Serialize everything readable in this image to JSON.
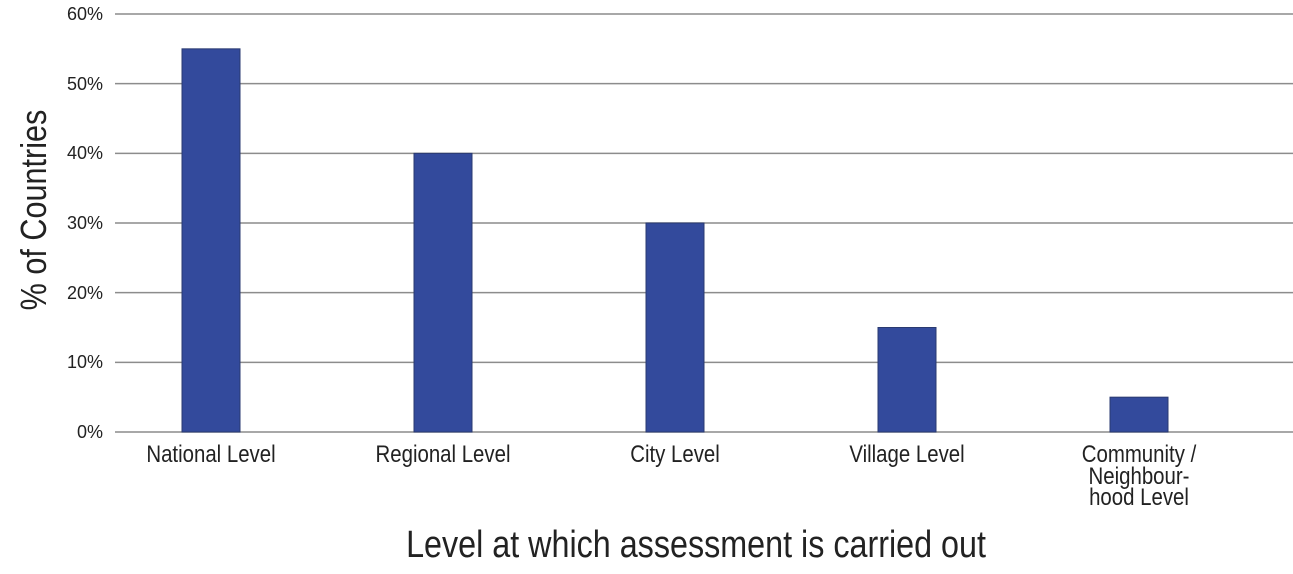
{
  "chart_data": {
    "type": "bar",
    "categories": [
      "National Level",
      "Regional Level",
      "City Level",
      "Village Level",
      "Community /\nNeighbour-\nhood Level"
    ],
    "values": [
      55,
      40,
      30,
      15,
      5
    ],
    "color": "#334a9c",
    "ylim": [
      0,
      60
    ],
    "yticks": [
      {
        "value": 0,
        "label": "0%"
      },
      {
        "value": 10,
        "label": "10%"
      },
      {
        "value": 20,
        "label": "20%"
      },
      {
        "value": 30,
        "label": "30%"
      },
      {
        "value": 40,
        "label": "40%"
      },
      {
        "value": 50,
        "label": "50%"
      },
      {
        "value": 60,
        "label": "60%"
      }
    ],
    "grid": true,
    "y_label": "% of Countries",
    "x_label": "Level at which assessment is carried out"
  }
}
